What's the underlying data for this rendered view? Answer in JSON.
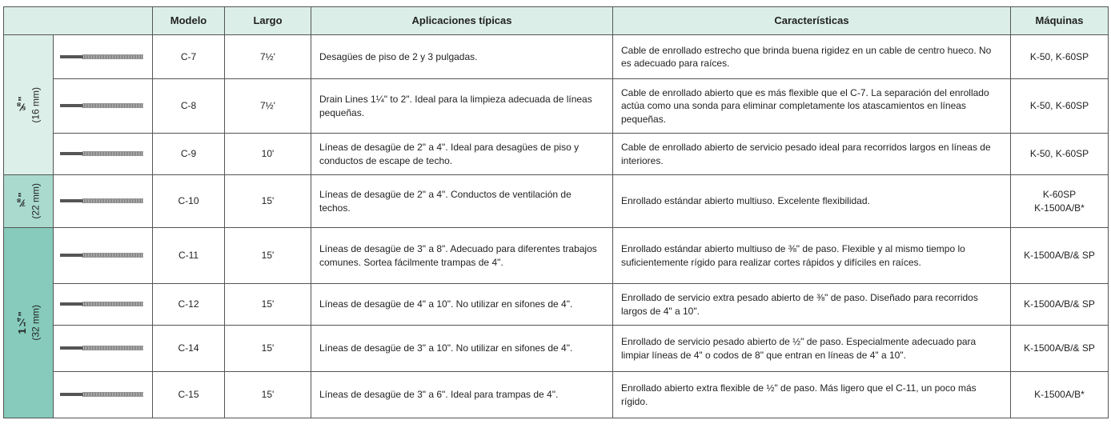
{
  "table": {
    "headers": [
      "Modelo",
      "Largo",
      "Aplicaciones típicas",
      "Características",
      "Máquinas"
    ],
    "groups": [
      {
        "size": "⅝\"",
        "metric": "(16 mm)",
        "rows": [
          {
            "model": "C-7",
            "length": "7½'",
            "applications": "Desagües de piso de 2 y 3 pulgadas.",
            "characteristics": "Cable de enrollado estrecho que brinda buena rigidez en un cable de centro hueco. No es adecuado para raíces.",
            "machines": [
              "K-50, K-60SP"
            ]
          },
          {
            "model": "C-8",
            "length": "7½'",
            "applications": "Drain Lines 1¼\" to 2\". Ideal para la limpieza adecuada de líneas pequeñas.",
            "characteristics": "Cable de enrollado abierto que es más flexible que el C-7. La separación del enrollado actúa como una sonda para eliminar completamente los atascamientos en líneas pequeñas.",
            "machines": [
              "K-50, K-60SP"
            ]
          },
          {
            "model": "C-9",
            "length": "10'",
            "applications": "Líneas de desagüe de 2\" a 4\". Ideal para desagües de piso y conductos de escape de techo.",
            "characteristics": "Cable de enrollado abierto de servicio pesado ideal para recorridos largos en líneas de interiores.",
            "machines": [
              "K-50, K-60SP"
            ]
          }
        ]
      },
      {
        "size": "⅞\"",
        "metric": "(22 mm)",
        "rows": [
          {
            "model": "C-10",
            "length": "15'",
            "applications": "Líneas de desagüe de 2\" a 4\". Conductos de ventilación de techos.",
            "characteristics": "Enrollado estándar abierto multiuso. Excelente flexibilidad.",
            "machines": [
              "K-60SP",
              "K-1500A/B*"
            ]
          }
        ]
      },
      {
        "size": "1¼\"",
        "metric": "(32 mm)",
        "rows": [
          {
            "model": "C-11",
            "length": "15'",
            "applications": "Líneas de desagüe de 3\" a 8\". Adecuado para diferentes trabajos comunes. Sortea fácilmente trampas de 4\".",
            "characteristics": "Enrollado estándar abierto multiuso de ⅜\" de paso. Flexible y al mismo tiempo lo suficientemente rígido para realizar cortes rápidos y difíciles en raíces.",
            "machines": [
              "K-1500A/B/& SP"
            ]
          },
          {
            "model": "C-12",
            "length": "15'",
            "applications": "Líneas de desagüe de 4\" a 10\". No utilizar en sifones de 4\".",
            "characteristics": "Enrollado de servicio extra pesado abierto de ⅜\" de paso. Diseñado para recorridos largos de 4\" a 10\".",
            "machines": [
              "K-1500A/B/& SP"
            ]
          },
          {
            "model": "C-14",
            "length": "15'",
            "applications": "Líneas de desagüe de 3\" a 10\". No utilizar en sifones de 4\".",
            "characteristics": "Enrollado de servicio pesado abierto de ½\" de paso. Especialmente adecuado para limpiar líneas de 4\" o codos de 8\" que entran en líneas de 4\" a 10\".",
            "machines": [
              "K-1500A/B/& SP"
            ]
          },
          {
            "model": "C-15",
            "length": "15'",
            "applications": "Líneas de desagüe de 3\" a 6\". Ideal para trampas de 4\".",
            "characteristics": "Enrollado abierto extra flexible de ½\" de paso. Más ligero que el C-11, un poco más rígido.",
            "machines": [
              "K-1500A/B*"
            ]
          }
        ]
      }
    ]
  }
}
